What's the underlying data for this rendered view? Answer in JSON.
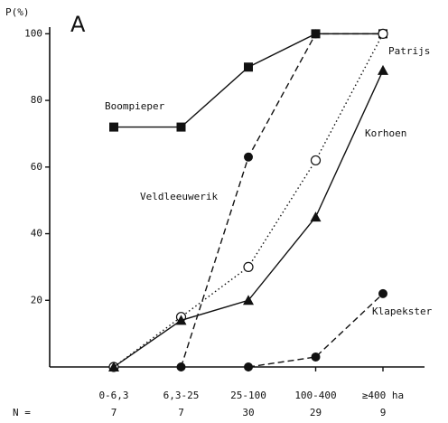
{
  "chart_data": {
    "type": "line",
    "panel_label": "A",
    "y_label": "P(%)",
    "categories": [
      "0-6,3",
      "6,3-25",
      "25-100",
      "100-400",
      "≥400 ha"
    ],
    "n_label": "N =",
    "n_values": [
      7,
      7,
      30,
      29,
      9
    ],
    "ylim": [
      0,
      102
    ],
    "yticks": [
      20,
      40,
      60,
      80,
      100
    ],
    "series": [
      {
        "name": "Boompieper",
        "color": "#111111",
        "marker": "square",
        "dash": "solid",
        "values": [
          72,
          72,
          90,
          100,
          100
        ]
      },
      {
        "name": "Veldleeuwerik",
        "color": "#111111",
        "marker": "circle",
        "dash": "dashed",
        "values": [
          null,
          0,
          63,
          100,
          100
        ]
      },
      {
        "name": "Patrijs",
        "color": "#111111",
        "marker": "open-circle",
        "dash": "dotted",
        "values": [
          0,
          15,
          30,
          62,
          100
        ]
      },
      {
        "name": "Korhoen",
        "color": "#111111",
        "marker": "triangle",
        "dash": "solid",
        "values": [
          0,
          14,
          20,
          45,
          89
        ]
      },
      {
        "name": "Klapekster",
        "color": "#111111",
        "marker": "circle",
        "dash": "dashed",
        "values": [
          null,
          null,
          0,
          3,
          22
        ]
      }
    ]
  }
}
